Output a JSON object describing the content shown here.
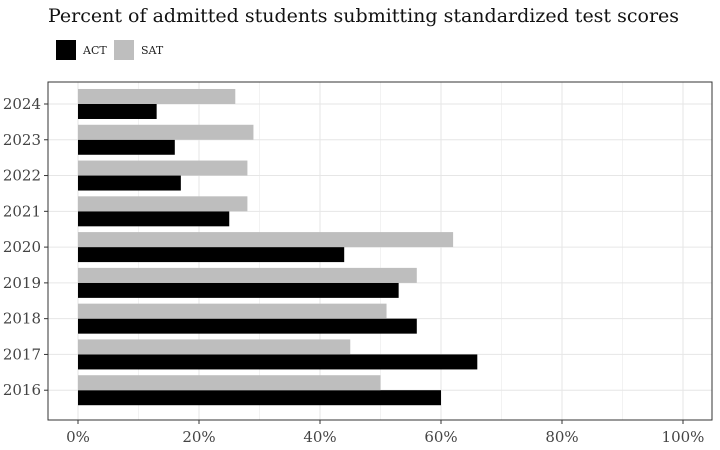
{
  "chart_data": {
    "type": "bar",
    "orientation": "horizontal",
    "title": "Percent of admitted students submitting standardized test scores",
    "xlabel": "",
    "ylabel": "",
    "categories": [
      "2016",
      "2017",
      "2018",
      "2019",
      "2020",
      "2021",
      "2022",
      "2023",
      "2024"
    ],
    "series": [
      {
        "name": "ACT",
        "color": "#000000",
        "values": [
          60,
          66,
          56,
          53,
          44,
          25,
          17,
          16,
          13
        ]
      },
      {
        "name": "SAT",
        "color": "#bebebe",
        "values": [
          50,
          45,
          51,
          56,
          62,
          28,
          28,
          29,
          26
        ]
      }
    ],
    "xlim": [
      0,
      100
    ],
    "xticks": [
      0,
      20,
      40,
      60,
      80,
      100
    ],
    "xtick_labels": [
      "0%",
      "20%",
      "40%",
      "60%",
      "80%",
      "100%"
    ],
    "grid": true,
    "legend_position": "top-left"
  }
}
